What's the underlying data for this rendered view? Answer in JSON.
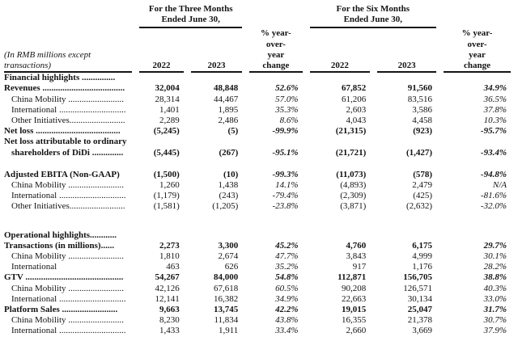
{
  "table": {
    "unit_note_lines": [
      "(In RMB millions except",
      "transactions)"
    ],
    "group_headers": [
      {
        "line1": "For the Three Months",
        "line2": "Ended June 30,"
      },
      {
        "line1": "For the Six Months",
        "line2": "Ended June 30,"
      }
    ],
    "pct_header_lines": [
      "% year-",
      "over-",
      "year",
      "change"
    ],
    "year_headers": [
      "2022",
      "2023"
    ],
    "rows": [
      {
        "label": "Financial highlights ...............",
        "style": "section"
      },
      {
        "label": "Revenues .....................................",
        "style": "total",
        "values": [
          "32,004",
          "48,848",
          "52.6%",
          "67,852",
          "91,560",
          "34.9%"
        ]
      },
      {
        "label": "China Mobility .........................",
        "style": "sub",
        "values": [
          "28,314",
          "44,467",
          "57.0%",
          "61,206",
          "83,516",
          "36.5%"
        ]
      },
      {
        "label": "International ..............................",
        "style": "sub",
        "values": [
          "1,401",
          "1,895",
          "35.3%",
          "2,603",
          "3,586",
          "37.8%"
        ]
      },
      {
        "label": "Other Initiatives.........................",
        "style": "sub",
        "values": [
          "2,289",
          "2,486",
          "8.6%",
          "4,043",
          "4,458",
          "10.3%"
        ]
      },
      {
        "label": "Net loss ......................................",
        "style": "total",
        "values": [
          "(5,245)",
          "(5)",
          "-99.9%",
          "(21,315)",
          "(923)",
          "-95.7%"
        ]
      },
      {
        "label": "Net loss attributable to ordinary",
        "label2": "shareholders of DiDi ..............",
        "style": "total",
        "values": [
          "(5,445)",
          "(267)",
          "-95.1%",
          "(21,721)",
          "(1,427)",
          "-93.4%"
        ]
      },
      {
        "style": "gap-sm"
      },
      {
        "label": "Adjusted EBITA (Non-GAAP)",
        "style": "total",
        "values": [
          "(1,500)",
          "(10)",
          "-99.3%",
          "(11,073)",
          "(578)",
          "-94.8%"
        ]
      },
      {
        "label": "China Mobility .........................",
        "style": "sub",
        "values": [
          "1,260",
          "1,438",
          "14.1%",
          "(4,893)",
          "2,479",
          "N/A"
        ]
      },
      {
        "label": "International ..............................",
        "style": "sub",
        "values": [
          "(1,179)",
          "(243)",
          "-79.4%",
          "(2,309)",
          "(425)",
          "-81.6%"
        ]
      },
      {
        "label": "Other Initiatives.........................",
        "style": "sub",
        "values": [
          "(1,581)",
          "(1,205)",
          "-23.8%",
          "(3,871)",
          "(2,632)",
          "-32.0%"
        ]
      },
      {
        "style": "gap-lg"
      },
      {
        "label": "Operational highlights............",
        "style": "section"
      },
      {
        "label": "Transactions (in millions)......",
        "style": "total",
        "values": [
          "2,273",
          "3,300",
          "45.2%",
          "4,760",
          "6,175",
          "29.7%"
        ]
      },
      {
        "label": "China Mobility .........................",
        "style": "sub",
        "values": [
          "1,810",
          "2,674",
          "47.7%",
          "3,843",
          "4,999",
          "30.1%"
        ]
      },
      {
        "label": "International",
        "style": "sub",
        "values": [
          "463",
          "626",
          "35.2%",
          "917",
          "1,176",
          "28.2%"
        ]
      },
      {
        "label": "GTV ............................................",
        "style": "total",
        "values": [
          "54,267",
          "84,000",
          "54.8%",
          "112,871",
          "156,705",
          "38.8%"
        ]
      },
      {
        "label": "China Mobility .........................",
        "style": "sub",
        "values": [
          "42,126",
          "67,618",
          "60.5%",
          "90,208",
          "126,571",
          "40.3%"
        ]
      },
      {
        "label": "International ..............................",
        "style": "sub",
        "values": [
          "12,141",
          "16,382",
          "34.9%",
          "22,663",
          "30,134",
          "33.0%"
        ]
      },
      {
        "label": "Platform Sales .........................",
        "style": "total",
        "values": [
          "9,663",
          "13,745",
          "42.2%",
          "19,015",
          "25,047",
          "31.7%"
        ]
      },
      {
        "label": "China Mobility .........................",
        "style": "sub",
        "values": [
          "8,230",
          "11,834",
          "43.8%",
          "16,355",
          "21,378",
          "30.7%"
        ]
      },
      {
        "label": "International ..............................",
        "style": "sub",
        "values": [
          "1,433",
          "1,911",
          "33.4%",
          "2,660",
          "3,669",
          "37.9%"
        ]
      }
    ]
  }
}
